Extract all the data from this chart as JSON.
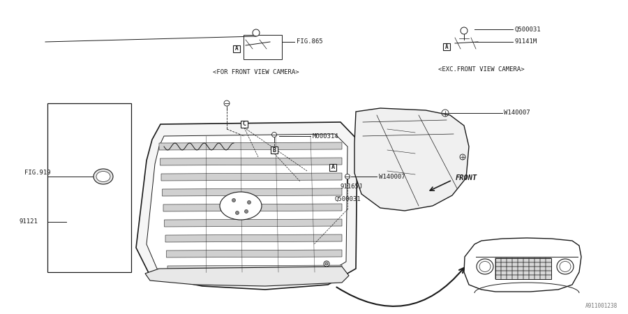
{
  "bg_color": "#ffffff",
  "line_color": "#1a1a1a",
  "fig_width": 9.0,
  "fig_height": 4.5,
  "watermark": "A911001238",
  "labels": {
    "fig919": "FIG.919",
    "fig865": "FIG.865",
    "m000314": "M000314",
    "w140007_1": "W140007",
    "w140007_2": "W140007",
    "q500031_1": "Q500031",
    "q500031_2": "Q500031",
    "91121": "91121",
    "91141m": "91141M",
    "91165j": "91165J",
    "front": "FRONT",
    "for_camera": "<FOR FRONT VIEW CAMERA>",
    "exc_camera": "<EXC.FRONT VIEW CAMERA>"
  },
  "font_size_tiny": 5.5,
  "font_size_small": 6.5,
  "font_size_medium": 7.5
}
